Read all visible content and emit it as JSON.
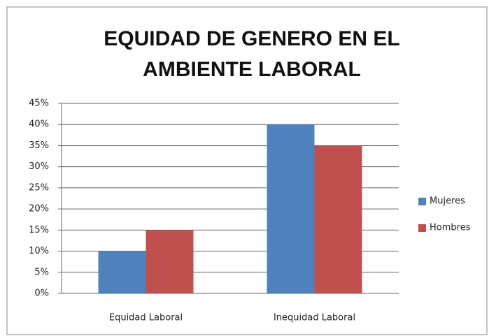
{
  "chart_data": {
    "type": "bar",
    "title": [
      "EQUIDAD DE GENERO EN EL",
      "AMBIENTE LABORAL"
    ],
    "categories": [
      "Equidad Laboral",
      "Inequidad Laboral"
    ],
    "series": [
      {
        "name": "Mujeres",
        "color": "#4f81bd",
        "values": [
          10,
          40
        ]
      },
      {
        "name": "Hombres",
        "color": "#c0504d",
        "values": [
          15,
          35
        ]
      }
    ],
    "ylim": [
      0,
      45
    ],
    "yticks": [
      {
        "value": 0,
        "label": "0%"
      },
      {
        "value": 5,
        "label": "5%"
      },
      {
        "value": 10,
        "label": "10%"
      },
      {
        "value": 15,
        "label": "15%"
      },
      {
        "value": 20,
        "label": "20%"
      },
      {
        "value": 25,
        "label": "25%"
      },
      {
        "value": 30,
        "label": "30%"
      },
      {
        "value": 35,
        "label": "35%"
      },
      {
        "value": 40,
        "label": "40%"
      },
      {
        "value": 45,
        "label": "45%"
      }
    ],
    "grid": true,
    "legend": "right"
  }
}
